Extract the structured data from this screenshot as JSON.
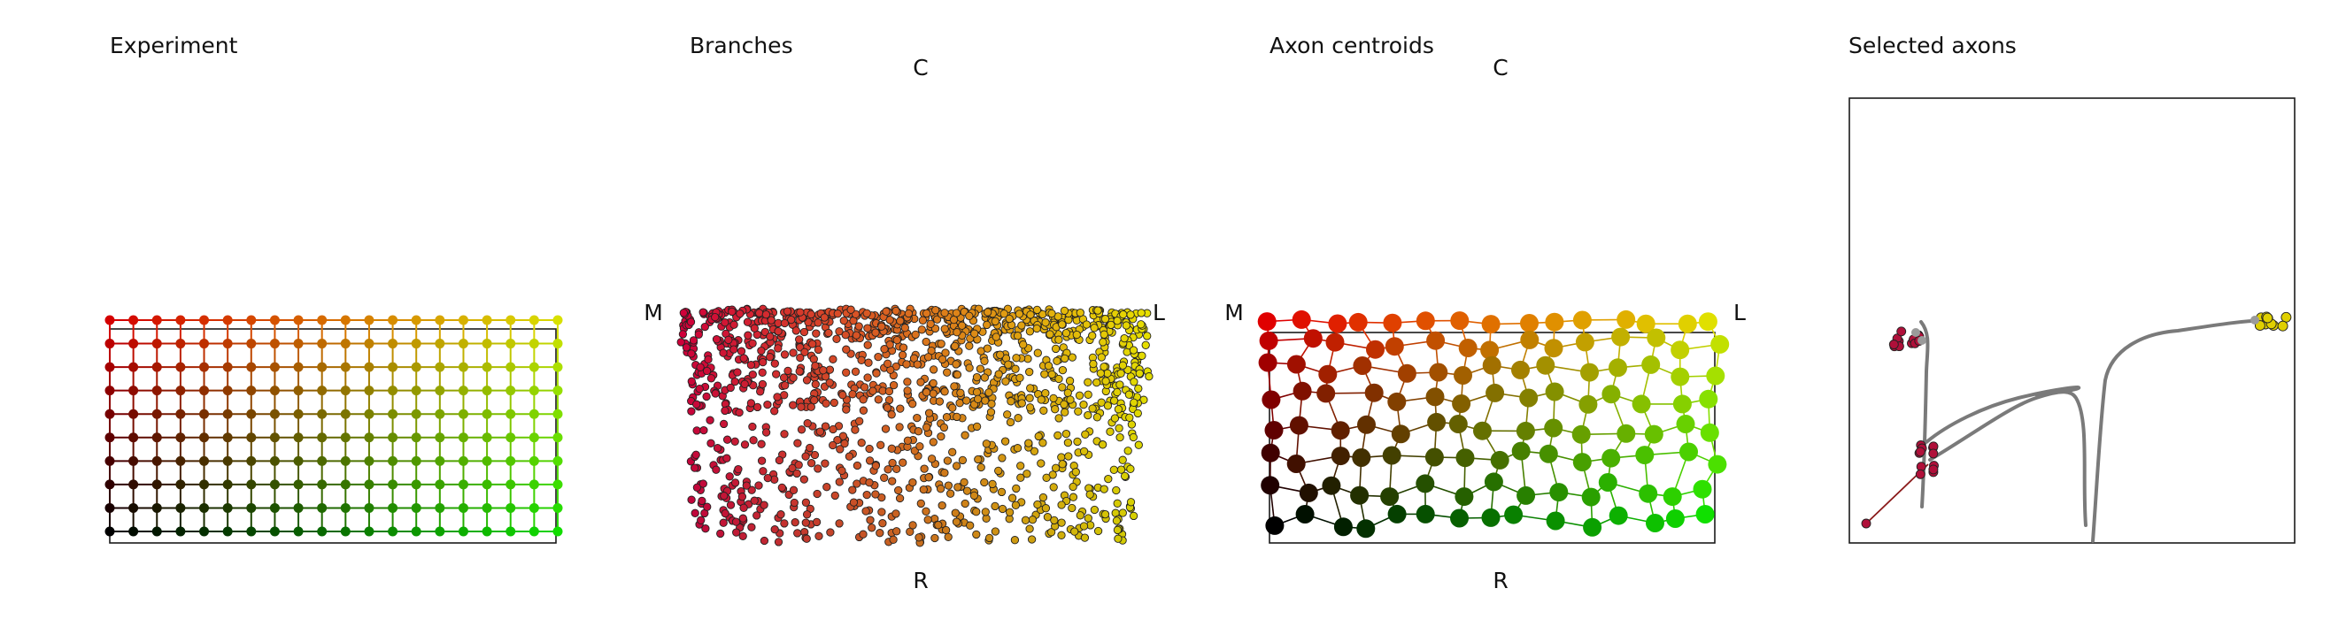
{
  "chart_data": [
    {
      "type": "scatter",
      "title": "Experiment",
      "description_rows": 10,
      "description_cols": 20,
      "x": [
        0,
        19
      ],
      "y": [
        0,
        9
      ],
      "grid_lines": true,
      "frame": true,
      "color_map": {
        "top_left": "#d40000",
        "top_right": "#d8e000",
        "bottom_left": "#000000",
        "bottom_right": "#11dd00"
      }
    },
    {
      "type": "scatter",
      "title": "Branches",
      "orientation_labels": {
        "top": "C",
        "bottom": "R",
        "left": "M",
        "right": "L"
      },
      "marker_outline": "#000000",
      "frame": false
    },
    {
      "type": "scatter",
      "title": "Axon centroids",
      "orientation_labels": {
        "top": "C",
        "bottom": "R",
        "left": "M",
        "right": "L"
      },
      "frame": true,
      "connected_neighbors": true
    },
    {
      "type": "scatter",
      "title": "Selected axons",
      "frame": true,
      "trace_color": "#7a7a7a",
      "clusters": [
        {
          "name": "upper-left",
          "color": "#b0103a"
        },
        {
          "name": "mid-left",
          "color": "#b0103a"
        },
        {
          "name": "right",
          "color": "#e0d000"
        },
        {
          "name": "isolated",
          "color": "#b0103a"
        }
      ]
    }
  ]
}
